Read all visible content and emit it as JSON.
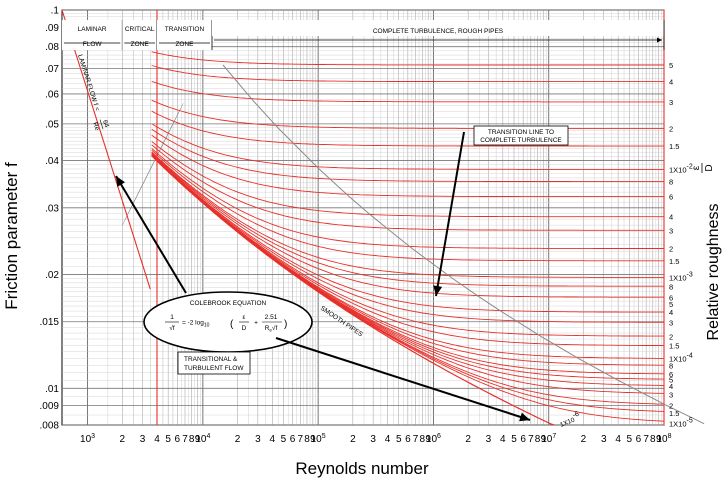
{
  "chart_data": {
    "type": "line",
    "title": "",
    "xlabel": "Reynolds number",
    "ylabel": "Friction parameter f",
    "right_label": "Relative roughness",
    "right_label_fraction": {
      "num": "ε",
      "den": "D"
    },
    "x_scale": "log",
    "y_scale": "log",
    "xlim": [
      600,
      100000000
    ],
    "ylim": [
      0.008,
      0.1
    ],
    "grid": true,
    "colors": {
      "curves": "#e8302a",
      "grid": "#9a9a9a",
      "transition": "#8a8a8a",
      "text": "#000000"
    },
    "x_ticks": [
      {
        "v": 1000,
        "m": "10",
        "e": "3"
      },
      {
        "v": 2000,
        "m": "2"
      },
      {
        "v": 3000,
        "m": "3"
      },
      {
        "v": 4000,
        "m": "4"
      },
      {
        "v": 5000,
        "m": "5"
      },
      {
        "v": 6000,
        "m": "6"
      },
      {
        "v": 7000,
        "m": "7"
      },
      {
        "v": 8000,
        "m": "8"
      },
      {
        "v": 9000,
        "m": "9"
      },
      {
        "v": 10000,
        "m": "10",
        "e": "4"
      },
      {
        "v": 20000,
        "m": "2"
      },
      {
        "v": 30000,
        "m": "3"
      },
      {
        "v": 40000,
        "m": "4"
      },
      {
        "v": 50000,
        "m": "5"
      },
      {
        "v": 60000,
        "m": "6"
      },
      {
        "v": 70000,
        "m": "7"
      },
      {
        "v": 80000,
        "m": "8"
      },
      {
        "v": 90000,
        "m": "9"
      },
      {
        "v": 100000,
        "m": "10",
        "e": "5"
      },
      {
        "v": 200000,
        "m": "2"
      },
      {
        "v": 300000,
        "m": "3"
      },
      {
        "v": 400000,
        "m": "4"
      },
      {
        "v": 500000,
        "m": "5"
      },
      {
        "v": 600000,
        "m": "6"
      },
      {
        "v": 700000,
        "m": "7"
      },
      {
        "v": 800000,
        "m": "8"
      },
      {
        "v": 900000,
        "m": "9"
      },
      {
        "v": 1000000,
        "m": "10",
        "e": "6"
      },
      {
        "v": 2000000,
        "m": "2"
      },
      {
        "v": 3000000,
        "m": "3"
      },
      {
        "v": 4000000,
        "m": "4"
      },
      {
        "v": 5000000,
        "m": "5"
      },
      {
        "v": 6000000,
        "m": "6"
      },
      {
        "v": 7000000,
        "m": "7"
      },
      {
        "v": 8000000,
        "m": "8"
      },
      {
        "v": 9000000,
        "m": "9"
      },
      {
        "v": 10000000,
        "m": "10",
        "e": "7"
      },
      {
        "v": 20000000,
        "m": "2"
      },
      {
        "v": 30000000,
        "m": "3"
      },
      {
        "v": 40000000,
        "m": "4"
      },
      {
        "v": 50000000,
        "m": "5"
      },
      {
        "v": 60000000,
        "m": "6"
      },
      {
        "v": 70000000,
        "m": "7"
      },
      {
        "v": 80000000,
        "m": "8"
      },
      {
        "v": 90000000,
        "m": "9"
      },
      {
        "v": 100000000,
        "m": "10",
        "e": "8"
      }
    ],
    "y_ticks": [
      {
        "v": 0.1,
        "t": ".1"
      },
      {
        "v": 0.09,
        "t": ".09"
      },
      {
        "v": 0.08,
        "t": ".08"
      },
      {
        "v": 0.07,
        "t": ".07"
      },
      {
        "v": 0.06,
        "t": ".06"
      },
      {
        "v": 0.05,
        "t": ".05"
      },
      {
        "v": 0.04,
        "t": ".04"
      },
      {
        "v": 0.03,
        "t": ".03"
      },
      {
        "v": 0.02,
        "t": ".02"
      },
      {
        "v": 0.015,
        "t": ".015"
      },
      {
        "v": 0.01,
        "t": ".01"
      },
      {
        "v": 0.009,
        "t": ".009"
      },
      {
        "v": 0.008,
        "t": ".008"
      }
    ],
    "right_ticks": [
      {
        "v": 0.05,
        "t": "5"
      },
      {
        "v": 0.04,
        "t": "4"
      },
      {
        "v": 0.03,
        "t": "3"
      },
      {
        "v": 0.02,
        "t": "2"
      },
      {
        "v": 0.015,
        "t": "1.5"
      },
      {
        "v": 0.01,
        "m": "1X10",
        "e": "-2"
      },
      {
        "v": 0.008,
        "t": "8"
      },
      {
        "v": 0.006,
        "t": "6"
      },
      {
        "v": 0.004,
        "t": "4"
      },
      {
        "v": 0.003,
        "t": "3"
      },
      {
        "v": 0.002,
        "t": "2"
      },
      {
        "v": 0.0015,
        "t": "1.5"
      },
      {
        "v": 0.001,
        "m": "1X10",
        "e": "-3"
      },
      {
        "v": 0.0008,
        "t": "8"
      },
      {
        "v": 0.0006,
        "t": "6"
      },
      {
        "v": 0.0005,
        "t": "5"
      },
      {
        "v": 0.0004,
        "t": "4"
      },
      {
        "v": 0.0003,
        "t": "3"
      },
      {
        "v": 0.0002,
        "t": "2"
      },
      {
        "v": 0.00015,
        "t": "1.5"
      },
      {
        "v": 0.0001,
        "m": "1X10",
        "e": "-4"
      },
      {
        "v": 8e-05,
        "t": "8"
      },
      {
        "v": 6e-05,
        "t": "6"
      },
      {
        "v": 5e-05,
        "t": "5"
      },
      {
        "v": 4e-05,
        "t": "4"
      },
      {
        "v": 3e-05,
        "t": "3"
      },
      {
        "v": 2e-05,
        "t": "2"
      },
      {
        "v": 1.5e-05,
        "t": "1.5"
      },
      {
        "v": 1e-05,
        "m": "1X10",
        "e": "-5"
      }
    ],
    "series": [
      {
        "roughness": 0.05
      },
      {
        "roughness": 0.04
      },
      {
        "roughness": 0.03
      },
      {
        "roughness": 0.02
      },
      {
        "roughness": 0.015
      },
      {
        "roughness": 0.01
      },
      {
        "roughness": 0.008
      },
      {
        "roughness": 0.006
      },
      {
        "roughness": 0.004
      },
      {
        "roughness": 0.003
      },
      {
        "roughness": 0.002
      },
      {
        "roughness": 0.0015
      },
      {
        "roughness": 0.001
      },
      {
        "roughness": 0.0008
      },
      {
        "roughness": 0.0006
      },
      {
        "roughness": 0.0004
      },
      {
        "roughness": 0.0003
      },
      {
        "roughness": 0.0002
      },
      {
        "roughness": 0.00015
      },
      {
        "roughness": 0.0001
      },
      {
        "roughness": 8e-05
      },
      {
        "roughness": 6e-05
      },
      {
        "roughness": 5e-05
      },
      {
        "roughness": 4e-05
      },
      {
        "roughness": 3e-05
      },
      {
        "roughness": 2e-05
      },
      {
        "roughness": 1.5e-05
      },
      {
        "roughness": 1e-05
      },
      {
        "roughness": 0
      }
    ],
    "laminar": {
      "label": "LAMINAR FLOW f =",
      "num": "64",
      "den": "Re",
      "x": [
        600,
        3500
      ]
    },
    "regions": {
      "laminar": {
        "line1": "LAMINAR",
        "line2": "FLOW",
        "x": [
          600,
          2000
        ]
      },
      "critical": {
        "line1": "CRITICAL",
        "line2": "ZONE",
        "x": [
          2000,
          4000
        ]
      },
      "transition": {
        "line1": "TRANSITION",
        "line2": "ZONE",
        "x": [
          4000,
          12000
        ]
      },
      "turbulent": {
        "text": "COMPLETE TURBULENCE, ROUGH PIPES",
        "x": [
          12000,
          100000000
        ]
      }
    },
    "annotations": {
      "transition_line": {
        "line1": "TRANSITION LINE TO",
        "line2": "COMPLETE TURBULENCE"
      },
      "colebrook": "COLEBROOK EQUATION",
      "equation": {
        "lhs_num": "1",
        "lhs_den": "√f",
        "eq": "= -2 log",
        "sub": "10",
        "f1_num": "ε",
        "f1_den": "D",
        "f2_num": "2.51",
        "f2_den": "R",
        "f2_sub": "e",
        "f2_den2": "√f"
      },
      "transitional": {
        "line1": "TRANSITIONAL &",
        "line2": "TURBULENT FLOW"
      },
      "smooth": "SMOOTH PIPES",
      "bottom_label": {
        "m": "1X10",
        "e": "-6"
      }
    }
  }
}
